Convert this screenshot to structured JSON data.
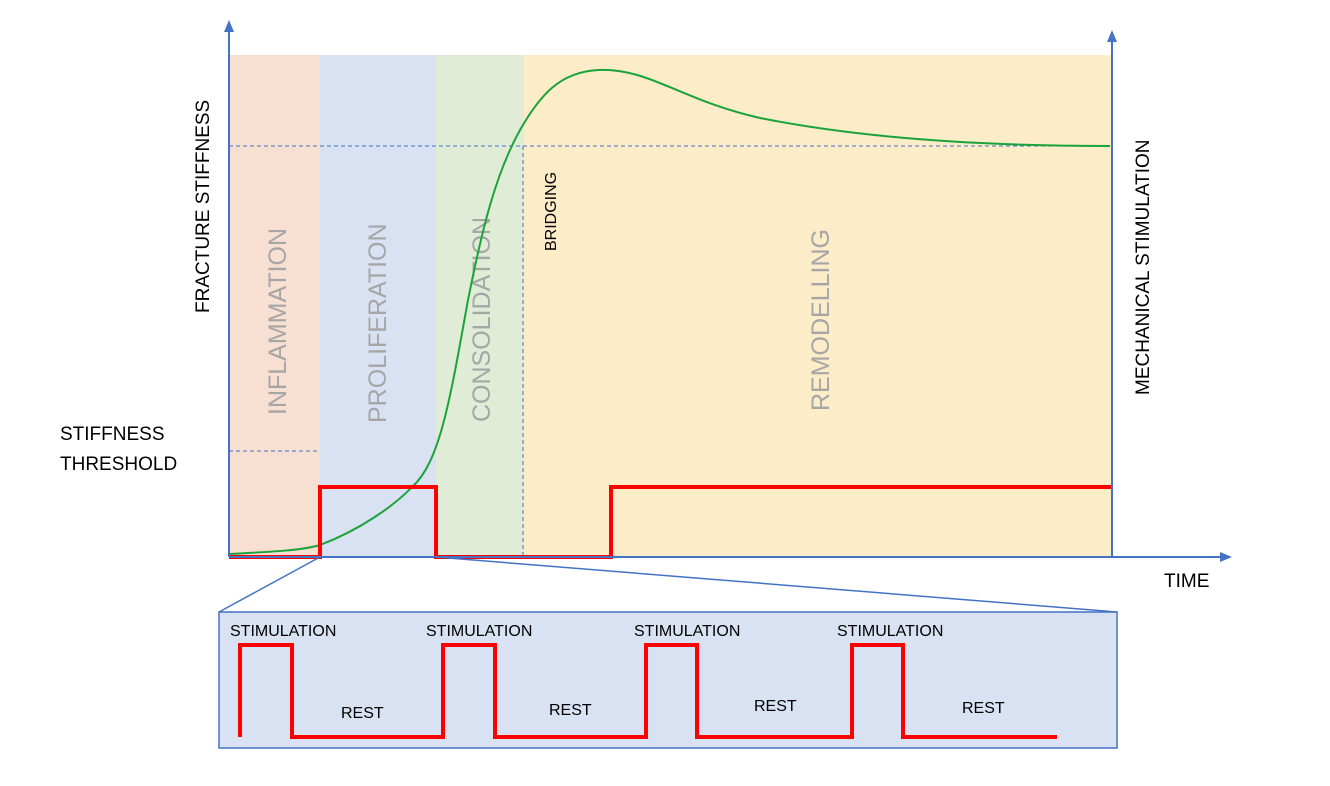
{
  "axes": {
    "y_left_label": "FRACTURE STIFFNESS",
    "y_right_label": "MECHANICAL STIMULATION",
    "x_label": "TIME",
    "threshold_label_line1": "STIFFNESS",
    "threshold_label_line2": "THRESHOLD"
  },
  "phases": [
    {
      "label": "INFLAMMATION",
      "color": "#f7dfd2"
    },
    {
      "label": "PROLIFERATION",
      "color": "#d9e2f2"
    },
    {
      "label": "CONSOLIDATION",
      "color": "#e0ecd6"
    },
    {
      "label": "REMODELLING",
      "color": "#fcecc8"
    }
  ],
  "bridging_label": "BRIDGING",
  "colors": {
    "axis": "#4472c4",
    "stiffness_curve": "#1aa33a",
    "stimulation_signal": "#ff0000",
    "phase_text": "#a6a6a6",
    "inset_fill": "#d9e2f2"
  },
  "inset": {
    "stimulation_labels": [
      "STIMULATION",
      "STIMULATION",
      "STIMULATION",
      "STIMULATION"
    ],
    "rest_labels": [
      "REST",
      "REST",
      "REST",
      "REST"
    ]
  }
}
